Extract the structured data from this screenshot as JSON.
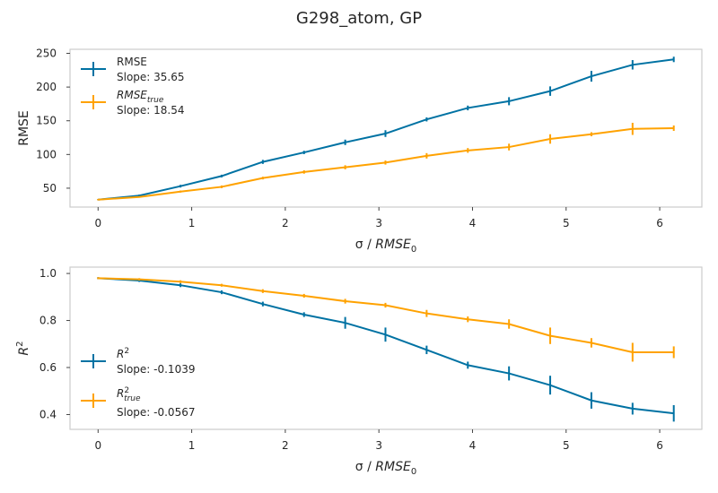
{
  "title": "G298_atom, GP",
  "colors": {
    "series_a": "#0072a3",
    "series_b": "#ffa200",
    "frame": "#cccccc"
  },
  "chart_data": [
    {
      "type": "line",
      "xlabel": "σ / RMSE0",
      "xlabel_main": "σ / ",
      "xlabel_var": "RMSE",
      "xlabel_sub": "0",
      "ylabel": "RMSE",
      "xlim": [
        -0.3,
        6.45
      ],
      "ylim": [
        22,
        256
      ],
      "grid": false,
      "legend_position": "upper-left",
      "x_ticks": [
        0,
        1,
        2,
        3,
        4,
        5,
        6
      ],
      "x_tick_labels": [
        "0",
        "1",
        "2",
        "3",
        "4",
        "5",
        "6"
      ],
      "y_ticks": [
        50,
        100,
        150,
        200,
        250
      ],
      "y_tick_labels": [
        "50",
        "100",
        "150",
        "200",
        "250"
      ],
      "x": [
        0,
        0.44,
        0.88,
        1.32,
        1.76,
        2.2,
        2.64,
        3.07,
        3.51,
        3.95,
        4.39,
        4.83,
        5.27,
        5.71,
        6.15
      ],
      "series": [
        {
          "name": "RMSE",
          "name_main": "RMSE",
          "name_sub": "",
          "slope_label": "Slope: 35.65",
          "values": [
            33,
            39,
            53,
            68,
            89,
            103,
            118,
            131,
            152,
            169,
            179,
            194,
            216,
            233,
            241
          ],
          "errors": [
            1,
            1.5,
            2,
            2,
            3,
            2.5,
            4,
            5,
            3,
            3.5,
            6,
            7,
            8,
            7,
            4
          ]
        },
        {
          "name": "RMSEtrue",
          "name_main": "RMSE",
          "name_sub": "true",
          "slope_label": "Slope: 18.54",
          "values": [
            33,
            37,
            45,
            52,
            65,
            74,
            81,
            88,
            98,
            106,
            111,
            123,
            130,
            138,
            139
          ],
          "errors": [
            1,
            1,
            1.5,
            2,
            2,
            2.5,
            3,
            3,
            4,
            3.5,
            5,
            7,
            3,
            9,
            4
          ]
        }
      ]
    },
    {
      "type": "line",
      "xlabel": "σ / RMSE0",
      "xlabel_main": "σ / ",
      "xlabel_var": "RMSE",
      "xlabel_sub": "0",
      "ylabel": "R2",
      "ylabel_main": "R",
      "ylabel_sup": "2",
      "xlim": [
        -0.3,
        6.45
      ],
      "ylim": [
        0.337,
        1.027
      ],
      "grid": false,
      "legend_position": "lower-left",
      "x_ticks": [
        0,
        1,
        2,
        3,
        4,
        5,
        6
      ],
      "x_tick_labels": [
        "0",
        "1",
        "2",
        "3",
        "4",
        "5",
        "6"
      ],
      "y_ticks": [
        0.4,
        0.6,
        0.8,
        1.0
      ],
      "y_tick_labels": [
        "0.4",
        "0.6",
        "0.8",
        "1.0"
      ],
      "x": [
        0,
        0.44,
        0.88,
        1.32,
        1.76,
        2.2,
        2.64,
        3.07,
        3.51,
        3.95,
        4.39,
        4.83,
        5.27,
        5.71,
        6.15
      ],
      "series": [
        {
          "name": "R2",
          "name_main": "R",
          "name_sup": "2",
          "name_sub": "",
          "slope_label": "Slope: -0.1039",
          "values": [
            0.98,
            0.97,
            0.95,
            0.92,
            0.87,
            0.825,
            0.79,
            0.74,
            0.675,
            0.61,
            0.575,
            0.525,
            0.46,
            0.425,
            0.405
          ],
          "errors": [
            0.004,
            0.006,
            0.008,
            0.008,
            0.01,
            0.01,
            0.025,
            0.03,
            0.018,
            0.015,
            0.03,
            0.04,
            0.035,
            0.025,
            0.035
          ]
        },
        {
          "name": "R2true",
          "name_main": "R",
          "name_sup": "2",
          "name_sub": "true",
          "slope_label": "Slope: -0.0567",
          "values": [
            0.98,
            0.975,
            0.965,
            0.95,
            0.925,
            0.905,
            0.882,
            0.865,
            0.83,
            0.805,
            0.785,
            0.735,
            0.705,
            0.665,
            0.665
          ],
          "errors": [
            0.004,
            0.005,
            0.006,
            0.006,
            0.008,
            0.008,
            0.01,
            0.01,
            0.015,
            0.012,
            0.02,
            0.035,
            0.02,
            0.04,
            0.025
          ]
        }
      ]
    }
  ]
}
